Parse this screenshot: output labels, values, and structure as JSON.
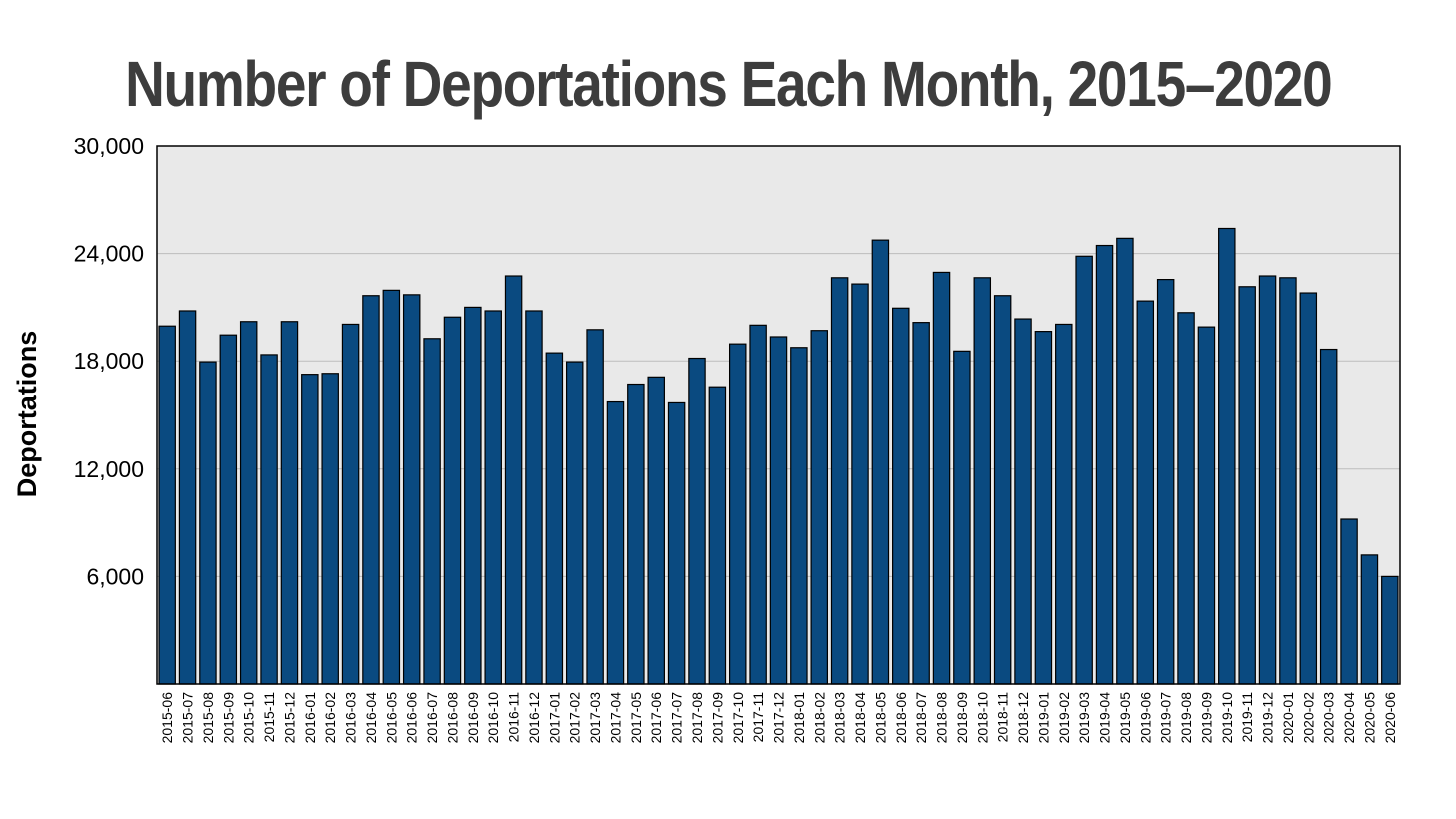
{
  "chart_data": {
    "type": "bar",
    "title": "Number of Deportations Each Month, 2015–2020",
    "xlabel": "",
    "ylabel": "Deportations",
    "ylim": [
      0,
      30000
    ],
    "yticks": [
      6000,
      12000,
      18000,
      24000,
      30000
    ],
    "ytick_labels": [
      "6,000",
      "12,000",
      "18,000",
      "24,000",
      "30,000"
    ],
    "grid": true,
    "legend": "none",
    "colors": {
      "bar": "#0a4a80",
      "plot_background": "#e9e9e9",
      "title": "#3d3d3d"
    },
    "categories": [
      "2015-06",
      "2015-07",
      "2015-08",
      "2015-09",
      "2015-10",
      "2015-11",
      "2015-12",
      "2016-01",
      "2016-02",
      "2016-03",
      "2016-04",
      "2016-05",
      "2016-06",
      "2016-07",
      "2016-08",
      "2016-09",
      "2016-10",
      "2016-11",
      "2016-12",
      "2017-01",
      "2017-02",
      "2017-03",
      "2017-04",
      "2017-05",
      "2017-06",
      "2017-07",
      "2017-08",
      "2017-09",
      "2017-10",
      "2017-11",
      "2017-12",
      "2018-01",
      "2018-02",
      "2018-03",
      "2018-04",
      "2018-05",
      "2018-06",
      "2018-07",
      "2018-08",
      "2018-09",
      "2018-10",
      "2018-11",
      "2018-12",
      "2019-01",
      "2019-02",
      "2019-03",
      "2019-04",
      "2019-05",
      "2019-06",
      "2019-07",
      "2019-08",
      "2019-09",
      "2019-10",
      "2019-11",
      "2019-12",
      "2020-01",
      "2020-02",
      "2020-03",
      "2020-04",
      "2020-05",
      "2020-06"
    ],
    "values": [
      19950,
      20800,
      17950,
      19450,
      20200,
      18350,
      20200,
      17250,
      17300,
      20050,
      21650,
      21950,
      21700,
      19250,
      20450,
      21000,
      20800,
      22750,
      20800,
      18450,
      17950,
      19750,
      15750,
      16700,
      17100,
      15700,
      18150,
      16550,
      18950,
      20000,
      19350,
      18750,
      19700,
      22650,
      22300,
      24750,
      20950,
      20150,
      22950,
      18550,
      22650,
      21650,
      20350,
      19650,
      20050,
      23850,
      24450,
      24850,
      21350,
      22550,
      20700,
      19900,
      25400,
      22150,
      22750,
      22650,
      21800,
      18650,
      9200,
      7200,
      6000
    ]
  }
}
